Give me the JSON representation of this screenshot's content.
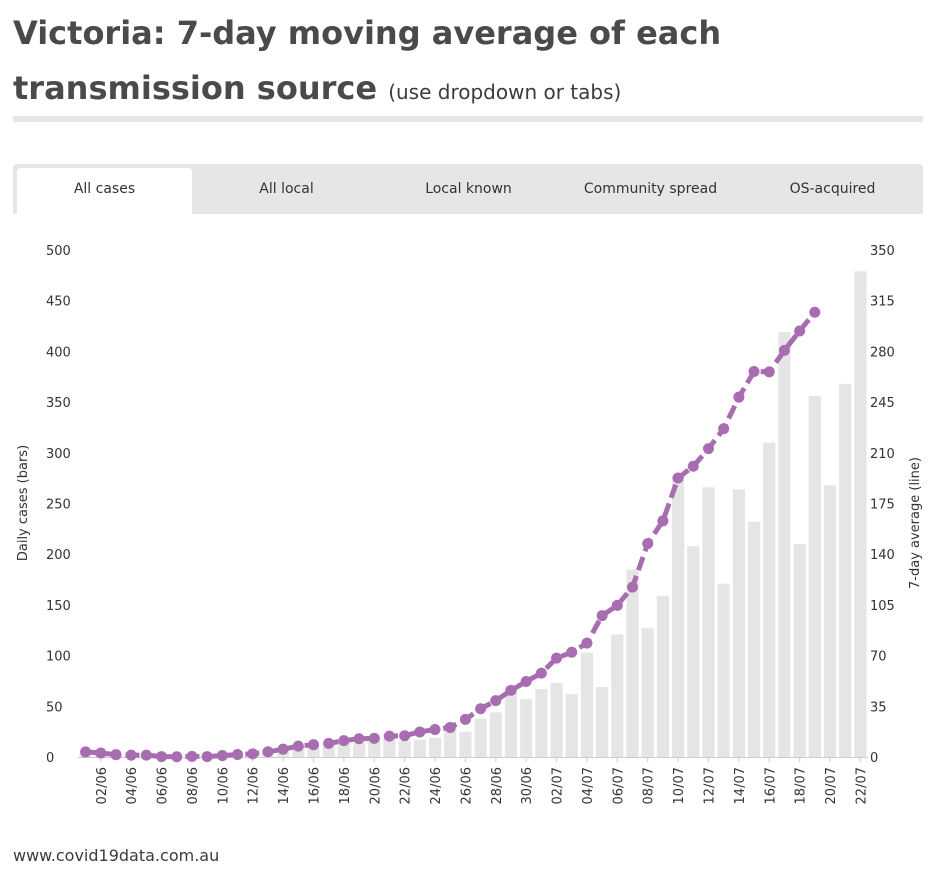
{
  "header": {
    "title_main": "Victoria: 7-day moving average of each transmission source",
    "title_sub": "(use dropdown or tabs)"
  },
  "tabs": [
    {
      "label": "All cases",
      "active": true
    },
    {
      "label": "All local",
      "active": false
    },
    {
      "label": "Local known",
      "active": false
    },
    {
      "label": "Community spread",
      "active": false
    },
    {
      "label": "OS-acquired",
      "active": false
    }
  ],
  "colors": {
    "bar": "#e5e5e5",
    "line": "#a86db0",
    "axis_text": "#333333"
  },
  "chart_data": {
    "type": "bar+line",
    "y_left_label": "Daily cases (bars)",
    "y_right_label": "7-day average (line)",
    "y_left_range": [
      0,
      500
    ],
    "y_left_ticks": [
      0,
      50,
      100,
      150,
      200,
      250,
      300,
      350,
      400,
      450,
      500
    ],
    "y_right_range": [
      0,
      350
    ],
    "y_right_ticks": [
      0,
      35,
      70,
      105,
      140,
      175,
      210,
      245,
      280,
      315,
      350
    ],
    "x_tick_labels": [
      "02/06",
      "04/06",
      "06/06",
      "08/06",
      "10/06",
      "12/06",
      "14/06",
      "16/06",
      "18/06",
      "20/06",
      "22/06",
      "24/06",
      "26/06",
      "28/06",
      "30/06",
      "02/07",
      "04/07",
      "06/07",
      "08/07",
      "10/07",
      "12/07",
      "14/07",
      "16/07",
      "18/07",
      "20/07",
      "22/07"
    ],
    "dates": [
      "01/06",
      "02/06",
      "03/06",
      "04/06",
      "05/06",
      "06/06",
      "07/06",
      "08/06",
      "09/06",
      "10/06",
      "11/06",
      "12/06",
      "13/06",
      "14/06",
      "15/06",
      "16/06",
      "17/06",
      "18/06",
      "19/06",
      "20/06",
      "21/06",
      "22/06",
      "23/06",
      "24/06",
      "25/06",
      "26/06",
      "27/06",
      "28/06",
      "29/06",
      "30/06",
      "01/07",
      "02/07",
      "03/07",
      "04/07",
      "05/07",
      "06/07",
      "07/07",
      "08/07",
      "09/07",
      "10/07",
      "11/07",
      "12/07",
      "13/07",
      "14/07",
      "15/07",
      "16/07",
      "17/07",
      "18/07",
      "19/07",
      "20/07",
      "21/07",
      "22/07"
    ],
    "bars": [
      4,
      2,
      1,
      1,
      1,
      0,
      0,
      1,
      1,
      2,
      2,
      2,
      4,
      8,
      11,
      10,
      14,
      17,
      14,
      20,
      21,
      16,
      17,
      19,
      33,
      25,
      38,
      44,
      70,
      57,
      67,
      73,
      62,
      103,
      69,
      121,
      185,
      127,
      159,
      278,
      208,
      266,
      171,
      264,
      232,
      310,
      419,
      210,
      356,
      268,
      368,
      479
    ],
    "line": [
      3.5,
      2.8,
      1.6,
      1.3,
      1.3,
      0.3,
      0.2,
      0.4,
      0.3,
      1.0,
      1.7,
      2.2,
      3.6,
      5.4,
      7.5,
      8.5,
      9.4,
      11.3,
      12.6,
      12.9,
      14.4,
      14.7,
      17.3,
      19.0,
      20.4,
      26.0,
      33.3,
      38.9,
      46.0,
      52.1,
      57.9,
      68.3,
      72.3,
      78.6,
      97.6,
      104.7,
      117.3,
      147.3,
      163.0,
      192.6,
      200.7,
      212.9,
      226.6,
      248.4,
      266.1,
      265.9,
      280.7,
      294.1,
      307.0,
      null,
      null,
      null
    ]
  },
  "footer": {
    "source": "www.covid19data.com.au"
  }
}
